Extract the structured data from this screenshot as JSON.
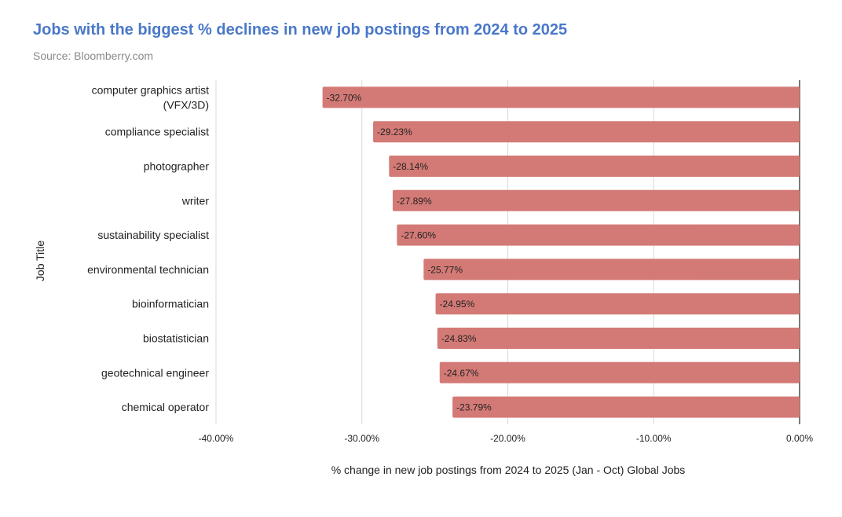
{
  "chart_data": {
    "type": "bar",
    "orientation": "horizontal",
    "title": "Jobs with the biggest % declines in new job postings from 2024 to 2025",
    "subtitle": "Source: Bloomberry.com",
    "xlabel": "% change in new job postings from 2024 to 2025 (Jan - Oct) Global Jobs",
    "ylabel": "Job Title",
    "xlim": [
      -40,
      0
    ],
    "xticks": [
      -40,
      -30,
      -20,
      -10,
      0
    ],
    "xtick_labels": [
      "-40.00%",
      "-30.00%",
      "-20.00%",
      "-10.00%",
      "0.00%"
    ],
    "grid": true,
    "bar_color": "#d47a76",
    "categories": [
      [
        "computer graphics artist",
        "(VFX/3D)"
      ],
      [
        "compliance specialist"
      ],
      [
        "photographer"
      ],
      [
        "writer"
      ],
      [
        "sustainability specialist"
      ],
      [
        "environmental technician"
      ],
      [
        "bioinformatician"
      ],
      [
        "biostatistician"
      ],
      [
        "geotechnical engineer"
      ],
      [
        "chemical operator"
      ]
    ],
    "values": [
      -32.7,
      -29.23,
      -28.14,
      -27.89,
      -27.6,
      -25.77,
      -24.95,
      -24.83,
      -24.67,
      -23.79
    ],
    "data_labels": [
      "-32.70%",
      "-29.23%",
      "-28.14%",
      "-27.89%",
      "-27.60%",
      "-25.77%",
      "-24.95%",
      "-24.83%",
      "-24.67%",
      "-23.79%"
    ]
  }
}
